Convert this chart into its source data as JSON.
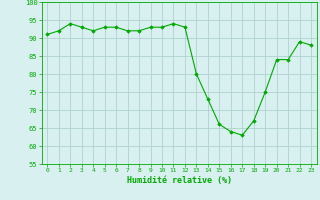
{
  "x": [
    0,
    1,
    2,
    3,
    4,
    5,
    6,
    7,
    8,
    9,
    10,
    11,
    12,
    13,
    14,
    15,
    16,
    17,
    18,
    19,
    20,
    21,
    22,
    23
  ],
  "y": [
    91,
    92,
    94,
    93,
    92,
    93,
    93,
    92,
    92,
    93,
    93,
    94,
    93,
    80,
    73,
    66,
    64,
    63,
    67,
    75,
    84,
    84,
    89,
    88
  ],
  "line_color": "#00aa00",
  "marker_color": "#00aa00",
  "bg_color": "#d8f0f0",
  "grid_color": "#b0d0d0",
  "xlabel": "Humidité relative (%)",
  "ylim": [
    55,
    100
  ],
  "yticks": [
    55,
    60,
    65,
    70,
    75,
    80,
    85,
    90,
    95,
    100
  ],
  "ytick_labels": [
    "55",
    "60",
    "65",
    "70",
    "75",
    "80",
    "85",
    "90",
    "95",
    "100"
  ],
  "xticks": [
    0,
    1,
    2,
    3,
    4,
    5,
    6,
    7,
    8,
    9,
    10,
    11,
    12,
    13,
    14,
    15,
    16,
    17,
    18,
    19,
    20,
    21,
    22,
    23
  ],
  "xlim": [
    -0.5,
    23.5
  ]
}
